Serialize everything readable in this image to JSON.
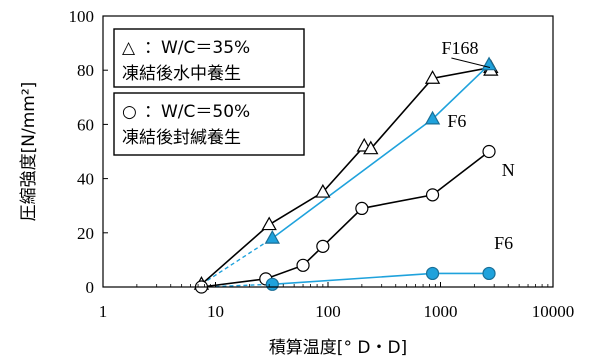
{
  "chart_data": {
    "type": "line",
    "x_scale": "log",
    "xlim": [
      1,
      10000
    ],
    "ylim": [
      0,
      100
    ],
    "x_ticks": [
      1,
      10,
      100,
      1000,
      10000
    ],
    "x_tick_labels": [
      "1",
      "10",
      "100",
      "1000",
      "10000"
    ],
    "y_ticks": [
      0,
      20,
      40,
      60,
      80,
      100
    ],
    "y_tick_labels": [
      "0",
      "20",
      "40",
      "60",
      "80",
      "100"
    ],
    "xlabel": "積算温度[° D・D]",
    "ylabel": "圧縮強度[N/mm²]",
    "grid": false,
    "legend": [
      {
        "symbol": "△",
        "text1": "：W/C＝35%",
        "text2": "凍結後水中養生"
      },
      {
        "symbol": "○",
        "text1": "：W/C＝50%",
        "text2": "凍結後封緘養生"
      }
    ],
    "annotations": [
      {
        "text": "F168",
        "x": 1020,
        "y": 86
      },
      {
        "text": "F6",
        "x": 1150,
        "y": 59
      },
      {
        "text": "N",
        "x": 3500,
        "y": 41
      },
      {
        "text": "F6",
        "x": 3000,
        "y": 14
      }
    ],
    "series": [
      {
        "marker": "triangle-open",
        "color": "#000000",
        "line": "solid",
        "x": [
          7.5,
          30,
          90,
          210,
          240,
          850,
          2800,
          2800
        ],
        "y": [
          1,
          23,
          35,
          52,
          51,
          77,
          81,
          80
        ]
      },
      {
        "marker": "triangle-filled",
        "color": "#1FA2DC",
        "line": "solid",
        "x": [
          32,
          850,
          2700
        ],
        "y": [
          18,
          62,
          82
        ]
      },
      {
        "marker": "circle-open",
        "color": "#000000",
        "line": "solid",
        "x": [
          7.5,
          28,
          60,
          90,
          200,
          850,
          2700
        ],
        "y": [
          0,
          3,
          8,
          15,
          29,
          34,
          50
        ]
      },
      {
        "marker": "circle-filled",
        "color": "#1FA2DC",
        "line": "solid",
        "x": [
          32,
          850,
          2700
        ],
        "y": [
          1,
          5,
          5
        ]
      }
    ],
    "dashed_links": [
      {
        "color": "#1FA2DC",
        "x": [
          7.5,
          32
        ],
        "y": [
          1,
          18
        ]
      },
      {
        "color": "#1FA2DC",
        "x": [
          7.5,
          32
        ],
        "y": [
          0,
          1
        ]
      }
    ]
  }
}
